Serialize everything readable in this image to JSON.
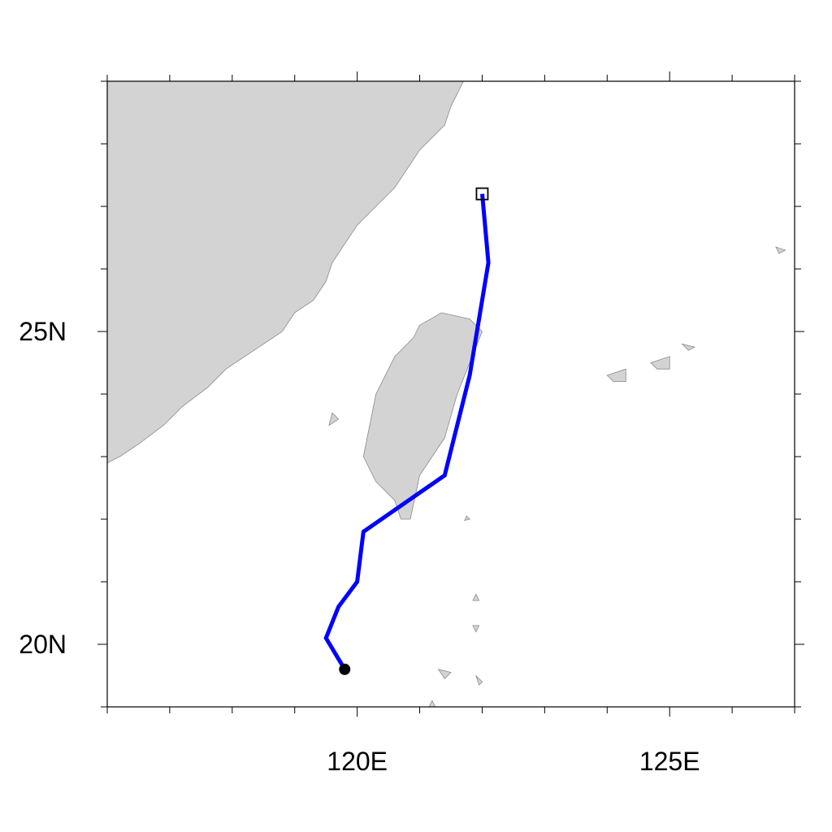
{
  "map": {
    "projection": "cylindrical-equidistant",
    "lon_range": [
      116,
      127
    ],
    "lat_range": [
      19,
      29
    ],
    "lon_ticks": [
      {
        "value": 120,
        "label": "120E"
      },
      {
        "value": 125,
        "label": "125E"
      }
    ],
    "lat_ticks": [
      {
        "value": 25,
        "label": "25N"
      },
      {
        "value": 20,
        "label": "20N"
      }
    ],
    "land_color": "#d3d3d3",
    "coast_color": "#8a8a8a",
    "track_color": "#0000ff",
    "marker_color": "#000000"
  },
  "chart_data": {
    "type": "line",
    "title": "",
    "xlabel": "",
    "ylabel": "",
    "xlim": [
      116,
      127
    ],
    "ylim": [
      19,
      29
    ],
    "grid": false,
    "series": [
      {
        "points": [
          {
            "lon": 119.8,
            "lat": 19.6
          },
          {
            "lon": 119.5,
            "lat": 20.1
          },
          {
            "lon": 119.7,
            "lat": 20.6
          },
          {
            "lon": 120.0,
            "lat": 21.0
          },
          {
            "lon": 120.1,
            "lat": 21.8
          },
          {
            "lon": 121.4,
            "lat": 22.7
          },
          {
            "lon": 121.8,
            "lat": 24.3
          },
          {
            "lon": 122.1,
            "lat": 26.1
          },
          {
            "lon": 122.0,
            "lat": 27.2
          }
        ],
        "start_marker": "filled-circle",
        "end_marker": "open-square"
      }
    ]
  },
  "land": {
    "mainland": [
      [
        116,
        29
      ],
      [
        121.7,
        29
      ],
      [
        121.6,
        28.8
      ],
      [
        121.5,
        28.6
      ],
      [
        121.4,
        28.3
      ],
      [
        121.2,
        28.1
      ],
      [
        121.0,
        27.9
      ],
      [
        120.8,
        27.6
      ],
      [
        120.6,
        27.3
      ],
      [
        120.3,
        27.0
      ],
      [
        120.0,
        26.7
      ],
      [
        119.8,
        26.4
      ],
      [
        119.6,
        26.1
      ],
      [
        119.5,
        25.8
      ],
      [
        119.3,
        25.5
      ],
      [
        119.0,
        25.3
      ],
      [
        118.8,
        25.0
      ],
      [
        118.5,
        24.8
      ],
      [
        118.2,
        24.6
      ],
      [
        117.9,
        24.4
      ],
      [
        117.6,
        24.1
      ],
      [
        117.2,
        23.8
      ],
      [
        116.9,
        23.5
      ],
      [
        116.5,
        23.2
      ],
      [
        116.2,
        23.0
      ],
      [
        116,
        22.9
      ]
    ],
    "islands": [
      [
        [
          121.0,
          25.1
        ],
        [
          121.35,
          25.3
        ],
        [
          121.8,
          25.2
        ],
        [
          122.0,
          25.0
        ],
        [
          121.8,
          24.5
        ],
        [
          121.6,
          24.0
        ],
        [
          121.4,
          23.3
        ],
        [
          121.0,
          22.7
        ],
        [
          120.85,
          22.0
        ],
        [
          120.7,
          22.0
        ],
        [
          120.6,
          22.3
        ],
        [
          120.3,
          22.6
        ],
        [
          120.1,
          23.0
        ],
        [
          120.2,
          23.5
        ],
        [
          120.3,
          24.0
        ],
        [
          120.6,
          24.6
        ],
        [
          120.9,
          24.9
        ]
      ],
      [
        [
          119.6,
          23.7
        ],
        [
          119.7,
          23.6
        ],
        [
          119.55,
          23.5
        ]
      ],
      [
        [
          124.0,
          24.3
        ],
        [
          124.3,
          24.4
        ],
        [
          124.3,
          24.2
        ],
        [
          124.1,
          24.2
        ]
      ],
      [
        [
          124.7,
          24.5
        ],
        [
          125.0,
          24.6
        ],
        [
          125.0,
          24.4
        ],
        [
          124.8,
          24.4
        ]
      ],
      [
        [
          125.2,
          24.8
        ],
        [
          125.4,
          24.75
        ],
        [
          125.3,
          24.7
        ]
      ],
      [
        [
          126.7,
          26.35
        ],
        [
          126.85,
          26.3
        ],
        [
          126.75,
          26.25
        ]
      ],
      [
        [
          121.75,
          22.05
        ],
        [
          121.8,
          22.0
        ],
        [
          121.72,
          21.98
        ]
      ],
      [
        [
          121.9,
          20.8
        ],
        [
          121.95,
          20.7
        ],
        [
          121.85,
          20.7
        ]
      ],
      [
        [
          121.85,
          20.3
        ],
        [
          121.95,
          20.3
        ],
        [
          121.9,
          20.2
        ]
      ],
      [
        [
          121.3,
          19.6
        ],
        [
          121.5,
          19.55
        ],
        [
          121.4,
          19.45
        ]
      ],
      [
        [
          121.9,
          19.5
        ],
        [
          122.0,
          19.4
        ],
        [
          121.95,
          19.35
        ]
      ],
      [
        [
          121.2,
          19.1
        ],
        [
          121.25,
          19.0
        ],
        [
          121.15,
          19.0
        ]
      ]
    ]
  }
}
